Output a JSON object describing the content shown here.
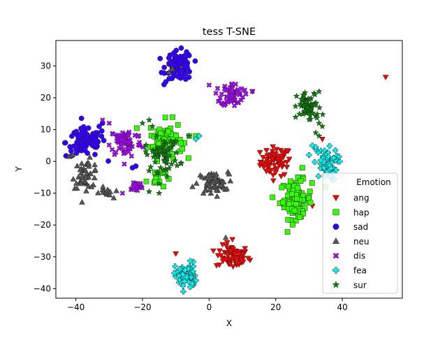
{
  "chart_data": {
    "type": "scatter",
    "title": "tess T-SNE",
    "xlabel": "X",
    "ylabel": "Y",
    "xlim": [
      -46,
      58
    ],
    "ylim": [
      -43,
      38
    ],
    "xticks": [
      -40,
      -20,
      0,
      20,
      40
    ],
    "yticks": [
      -40,
      -30,
      -20,
      -10,
      0,
      10,
      20,
      30
    ],
    "xtick_labels": [
      "−40",
      "−20",
      "0",
      "20",
      "40"
    ],
    "ytick_labels": [
      "−40",
      "−30",
      "−20",
      "−10",
      "0",
      "10",
      "20",
      "30"
    ],
    "grid": false,
    "legend": {
      "title": "Emotion",
      "placement": "lower-right"
    },
    "series": [
      {
        "name": "ang",
        "marker": "triangle-down",
        "color": "#ff0000",
        "clusters": [
          {
            "cx": 20,
            "cy": 0,
            "sx": 2.3,
            "sy": 2.3,
            "n": 70
          },
          {
            "cx": 7,
            "cy": -30,
            "sx": 2.5,
            "sy": 1.8,
            "n": 70
          }
        ],
        "points": [
          [
            53,
            26.5
          ],
          [
            -10,
            -29
          ],
          [
            13,
            22
          ],
          [
            34,
            7
          ],
          [
            31,
            -14
          ],
          [
            30,
            -13
          ],
          [
            7,
            -24.5
          ]
        ]
      },
      {
        "name": "hap",
        "marker": "square",
        "color": "#33ff00",
        "clusters": [
          {
            "cx": -13,
            "cy": 7,
            "sx": 2.5,
            "sy": 3.0,
            "n": 70
          },
          {
            "cx": -16,
            "cy": -5,
            "sx": 1.4,
            "sy": 1.8,
            "n": 18
          },
          {
            "cx": 26,
            "cy": -12,
            "sx": 2.4,
            "sy": 3.0,
            "n": 85
          }
        ],
        "points": [
          [
            -6,
            8
          ],
          [
            -4,
            8
          ],
          [
            -21,
            -8
          ],
          [
            -8,
            4
          ],
          [
            35,
            -8
          ],
          [
            28,
            -2
          ]
        ]
      },
      {
        "name": "sad",
        "marker": "circle",
        "color": "#3300ff",
        "clusters": [
          {
            "cx": -37,
            "cy": 6,
            "sx": 3.0,
            "sy": 2.3,
            "n": 90
          },
          {
            "cx": -9,
            "cy": 30,
            "sx": 2.0,
            "sy": 2.3,
            "n": 80
          }
        ],
        "points": [
          [
            -32,
            12
          ],
          [
            -33,
            11
          ],
          [
            -23,
            -2
          ],
          [
            -22,
            -1.5
          ],
          [
            -13,
            25
          ],
          [
            -12,
            26
          ],
          [
            -10,
            33
          ]
        ]
      },
      {
        "name": "neu",
        "marker": "triangle-up",
        "color": "#555555",
        "clusters": [
          {
            "cx": -37,
            "cy": -4,
            "sx": 2.0,
            "sy": 2.2,
            "n": 45
          },
          {
            "cx": -31,
            "cy": -10,
            "sx": 1.0,
            "sy": 0.9,
            "n": 15
          },
          {
            "cx": 1,
            "cy": -7,
            "sx": 2.3,
            "sy": 1.8,
            "n": 55
          }
        ],
        "points": [
          [
            -42,
            1.5
          ],
          [
            -41,
            2
          ],
          [
            6,
            -4
          ],
          [
            -5,
            -8
          ],
          [
            -11,
            29
          ],
          [
            -12,
            28
          ],
          [
            5,
            -24
          ]
        ]
      },
      {
        "name": "dis",
        "marker": "x",
        "color": "#aa00ff",
        "clusters": [
          {
            "cx": -25,
            "cy": 6,
            "sx": 2.4,
            "sy": 2.4,
            "n": 70
          },
          {
            "cx": 7,
            "cy": 21,
            "sx": 1.7,
            "sy": 1.8,
            "n": 60
          },
          {
            "cx": -22,
            "cy": -8,
            "sx": 1.3,
            "sy": 1.0,
            "n": 20
          }
        ],
        "points": [
          [
            -26,
            -10
          ],
          [
            0,
            24
          ],
          [
            13,
            22
          ],
          [
            -30,
            12
          ],
          [
            -32,
            13
          ]
        ]
      },
      {
        "name": "fea",
        "marker": "plus",
        "color": "#00ffff",
        "clusters": [
          {
            "cx": 35,
            "cy": -1,
            "sx": 1.8,
            "sy": 2.5,
            "n": 55
          },
          {
            "cx": -7,
            "cy": -36,
            "sx": 1.6,
            "sy": 2.2,
            "n": 60
          }
        ],
        "points": [
          [
            31,
            5
          ],
          [
            32,
            4.5
          ],
          [
            30,
            2
          ],
          [
            -3,
            8
          ],
          [
            -4,
            7
          ]
        ]
      },
      {
        "name": "sur",
        "marker": "star",
        "color": "#008800",
        "clusters": [
          {
            "cx": 30,
            "cy": 17,
            "sx": 1.8,
            "sy": 2.4,
            "n": 60
          },
          {
            "cx": -14,
            "cy": 2,
            "sx": 2.6,
            "sy": 2.6,
            "n": 55
          }
        ],
        "points": [
          [
            -18,
            13
          ],
          [
            -17,
            11
          ],
          [
            -15,
            -10
          ],
          [
            -18,
            -9.5
          ],
          [
            -6,
            8
          ],
          [
            33,
            12
          ],
          [
            32,
            9
          ],
          [
            33,
            8
          ],
          [
            34,
            11
          ],
          [
            -20,
            12
          ],
          [
            -15,
            -7
          ]
        ]
      }
    ]
  }
}
